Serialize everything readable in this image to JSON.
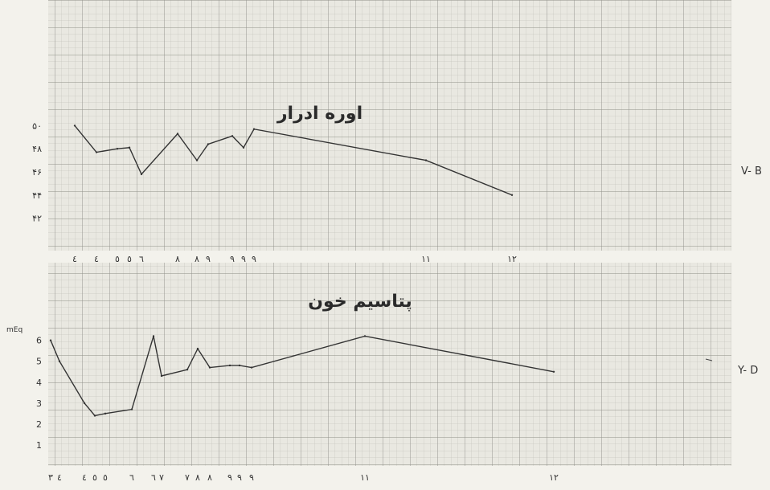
{
  "chart_data": [
    {
      "type": "line",
      "title": "اوره ادرار",
      "side_label": "V- B",
      "ylim": [
        41,
        51
      ],
      "yticks": [
        42,
        44,
        46,
        48,
        50
      ],
      "ytick_labels": [
        "۴۲",
        "۴۴",
        "۴۶",
        "۴۸",
        "۵۰"
      ],
      "grid": true,
      "x": [
        1,
        2,
        3,
        4,
        5,
        6,
        7,
        8,
        9,
        10,
        11,
        12,
        13
      ],
      "values": [
        50.0,
        47.7,
        48.0,
        48.1,
        45.8,
        49.3,
        47.0,
        48.4,
        49.1,
        48.1,
        49.7,
        47.0,
        44.0
      ],
      "xtick_labels": [
        "٤",
        "٤",
        "٥",
        "٥",
        "٦",
        "٨",
        "٨",
        "٩",
        "٩",
        "٩",
        "٩",
        "١١",
        "١٢"
      ],
      "line_color": "#333333"
    },
    {
      "type": "line",
      "title": "پتاسیم خون",
      "side_label": "Y- D",
      "ylim": [
        0,
        7.6
      ],
      "yticks": [
        1,
        2,
        3,
        4,
        5,
        6
      ],
      "ytick_labels": [
        "1",
        "2",
        "3",
        "4",
        "5",
        "6"
      ],
      "yaxis_note": "mEq",
      "grid": true,
      "x": [
        0.5,
        1,
        2,
        3,
        4,
        5,
        6,
        7,
        8,
        9,
        10,
        11,
        12,
        13,
        14,
        15
      ],
      "values": [
        6.0,
        5.0,
        3.0,
        2.4,
        2.5,
        2.7,
        6.2,
        4.3,
        4.6,
        5.6,
        4.7,
        4.8,
        4.8,
        4.7,
        6.2,
        4.5
      ],
      "xtick_labels": [
        "٣",
        "٤",
        "٤",
        "٥",
        "٥",
        "٦",
        "٦",
        "٧",
        "٧",
        "٨",
        "٨",
        "٩",
        "٩",
        "٩",
        "١١",
        "١٢"
      ],
      "line_color": "#333333"
    }
  ]
}
